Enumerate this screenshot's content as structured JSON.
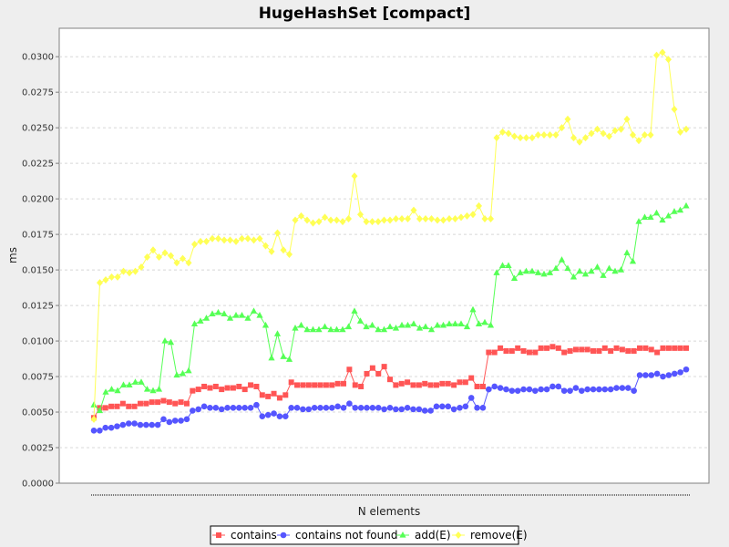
{
  "chart_data": {
    "type": "line",
    "title": "HugeHashSet [compact]",
    "xlabel": "N elements",
    "ylabel": "ms",
    "ylim": [
      0,
      0.032
    ],
    "y_ticks": [
      "0.0000",
      "0.0025",
      "0.0050",
      "0.0075",
      "0.0100",
      "0.0125",
      "0.0150",
      "0.0175",
      "0.0200",
      "0.0225",
      "0.0250",
      "0.0275",
      "0.0300"
    ],
    "y_tick_values": [
      0,
      0.0025,
      0.005,
      0.0075,
      0.01,
      0.0125,
      0.015,
      0.0175,
      0.02,
      0.0225,
      0.025,
      0.0275,
      0.03
    ],
    "grid": true,
    "legend_placement": "bottom",
    "series": [
      {
        "name": "contains",
        "color": "#ff5555",
        "marker": "square",
        "values": [
          0.0046,
          0.0053,
          0.0053,
          0.0054,
          0.0054,
          0.0056,
          0.0054,
          0.0054,
          0.0056,
          0.0056,
          0.0057,
          0.0057,
          0.0058,
          0.0057,
          0.0056,
          0.0057,
          0.0056,
          0.0065,
          0.0066,
          0.0068,
          0.0067,
          0.0068,
          0.0066,
          0.0067,
          0.0067,
          0.0068,
          0.0066,
          0.0069,
          0.0068,
          0.0062,
          0.0061,
          0.0063,
          0.006,
          0.0062,
          0.0071,
          0.0069,
          0.0069,
          0.0069,
          0.0069,
          0.0069,
          0.0069,
          0.0069,
          0.007,
          0.007,
          0.008,
          0.0069,
          0.0068,
          0.0077,
          0.0081,
          0.0077,
          0.0082,
          0.0073,
          0.0069,
          0.007,
          0.0071,
          0.0069,
          0.0069,
          0.007,
          0.0069,
          0.0069,
          0.007,
          0.007,
          0.0069,
          0.0071,
          0.0071,
          0.0074,
          0.0068,
          0.0068,
          0.0092,
          0.0092,
          0.0095,
          0.0093,
          0.0093,
          0.0095,
          0.0093,
          0.0092,
          0.0092,
          0.0095,
          0.0095,
          0.0096,
          0.0095,
          0.0092,
          0.0093,
          0.0094,
          0.0094,
          0.0094,
          0.0093,
          0.0093,
          0.0095,
          0.0093,
          0.0095,
          0.0094,
          0.0093,
          0.0093,
          0.0095,
          0.0095,
          0.0094,
          0.0092,
          0.0095,
          0.0095,
          0.0095,
          0.0095,
          0.0095
        ]
      },
      {
        "name": "contains not found",
        "color": "#5555ff",
        "marker": "circle",
        "values": [
          0.0037,
          0.0037,
          0.0039,
          0.0039,
          0.004,
          0.0041,
          0.0042,
          0.0042,
          0.0041,
          0.0041,
          0.0041,
          0.0041,
          0.0045,
          0.0043,
          0.0044,
          0.0044,
          0.0045,
          0.0051,
          0.0052,
          0.0054,
          0.0053,
          0.0053,
          0.0052,
          0.0053,
          0.0053,
          0.0053,
          0.0053,
          0.0053,
          0.0055,
          0.0047,
          0.0048,
          0.0049,
          0.0047,
          0.0047,
          0.0053,
          0.0053,
          0.0052,
          0.0052,
          0.0053,
          0.0053,
          0.0053,
          0.0053,
          0.0054,
          0.0053,
          0.0056,
          0.0053,
          0.0053,
          0.0053,
          0.0053,
          0.0053,
          0.0052,
          0.0053,
          0.0052,
          0.0052,
          0.0053,
          0.0052,
          0.0052,
          0.0051,
          0.0051,
          0.0054,
          0.0054,
          0.0054,
          0.0052,
          0.0053,
          0.0054,
          0.006,
          0.0053,
          0.0053,
          0.0066,
          0.0068,
          0.0067,
          0.0066,
          0.0065,
          0.0065,
          0.0066,
          0.0066,
          0.0065,
          0.0066,
          0.0066,
          0.0068,
          0.0068,
          0.0065,
          0.0065,
          0.0067,
          0.0065,
          0.0066,
          0.0066,
          0.0066,
          0.0066,
          0.0066,
          0.0067,
          0.0067,
          0.0067,
          0.0065,
          0.0076,
          0.0076,
          0.0076,
          0.0077,
          0.0075,
          0.0076,
          0.0077,
          0.0078,
          0.008
        ]
      },
      {
        "name": "add(E)",
        "color": "#55ff55",
        "marker": "triangle",
        "values": [
          0.0055,
          0.0051,
          0.0064,
          0.0066,
          0.0065,
          0.0069,
          0.0069,
          0.0071,
          0.0071,
          0.0066,
          0.0065,
          0.0066,
          0.01,
          0.0099,
          0.0076,
          0.0077,
          0.0079,
          0.0112,
          0.0114,
          0.0116,
          0.0119,
          0.012,
          0.0119,
          0.0116,
          0.0118,
          0.0118,
          0.0116,
          0.0121,
          0.0118,
          0.0111,
          0.0088,
          0.0105,
          0.0089,
          0.0087,
          0.0109,
          0.0111,
          0.0108,
          0.0108,
          0.0108,
          0.011,
          0.0108,
          0.0108,
          0.0108,
          0.011,
          0.0121,
          0.0114,
          0.011,
          0.0111,
          0.0108,
          0.0108,
          0.011,
          0.0109,
          0.0111,
          0.0111,
          0.0112,
          0.0109,
          0.011,
          0.0108,
          0.0111,
          0.0111,
          0.0112,
          0.0112,
          0.0112,
          0.011,
          0.0122,
          0.0112,
          0.0113,
          0.0111,
          0.0148,
          0.0153,
          0.0153,
          0.0144,
          0.0148,
          0.0149,
          0.0149,
          0.0148,
          0.0147,
          0.0148,
          0.0151,
          0.0157,
          0.0151,
          0.0145,
          0.0149,
          0.0147,
          0.0149,
          0.0152,
          0.0146,
          0.0151,
          0.0149,
          0.015,
          0.0162,
          0.0156,
          0.0184,
          0.0187,
          0.0187,
          0.019,
          0.0185,
          0.0188,
          0.0191,
          0.0192,
          0.0195
        ]
      },
      {
        "name": "remove(E)",
        "color": "#ffff55",
        "marker": "diamond",
        "values": [
          0.0045,
          0.0141,
          0.0143,
          0.0145,
          0.0145,
          0.0149,
          0.0148,
          0.0149,
          0.0152,
          0.0159,
          0.0164,
          0.0159,
          0.0162,
          0.016,
          0.0155,
          0.0158,
          0.0155,
          0.0168,
          0.017,
          0.017,
          0.0172,
          0.0172,
          0.0171,
          0.0171,
          0.017,
          0.0172,
          0.0172,
          0.0171,
          0.0172,
          0.0167,
          0.0163,
          0.0176,
          0.0164,
          0.0161,
          0.0185,
          0.0188,
          0.0185,
          0.0183,
          0.0184,
          0.0187,
          0.0185,
          0.0185,
          0.0184,
          0.0186,
          0.0216,
          0.0189,
          0.0184,
          0.0184,
          0.0184,
          0.0185,
          0.0185,
          0.0186,
          0.0186,
          0.0186,
          0.0192,
          0.0186,
          0.0186,
          0.0186,
          0.0185,
          0.0185,
          0.0186,
          0.0186,
          0.0187,
          0.0188,
          0.0189,
          0.0195,
          0.0186,
          0.0186,
          0.0243,
          0.0247,
          0.0246,
          0.0244,
          0.0243,
          0.0243,
          0.0243,
          0.0245,
          0.0245,
          0.0245,
          0.0245,
          0.025,
          0.0256,
          0.0243,
          0.024,
          0.0243,
          0.0246,
          0.0249,
          0.0246,
          0.0244,
          0.0248,
          0.0249,
          0.0256,
          0.0245,
          0.0241,
          0.0245,
          0.0245,
          0.0301,
          0.0303,
          0.0298,
          0.0263,
          0.0247,
          0.0249
        ]
      }
    ]
  }
}
